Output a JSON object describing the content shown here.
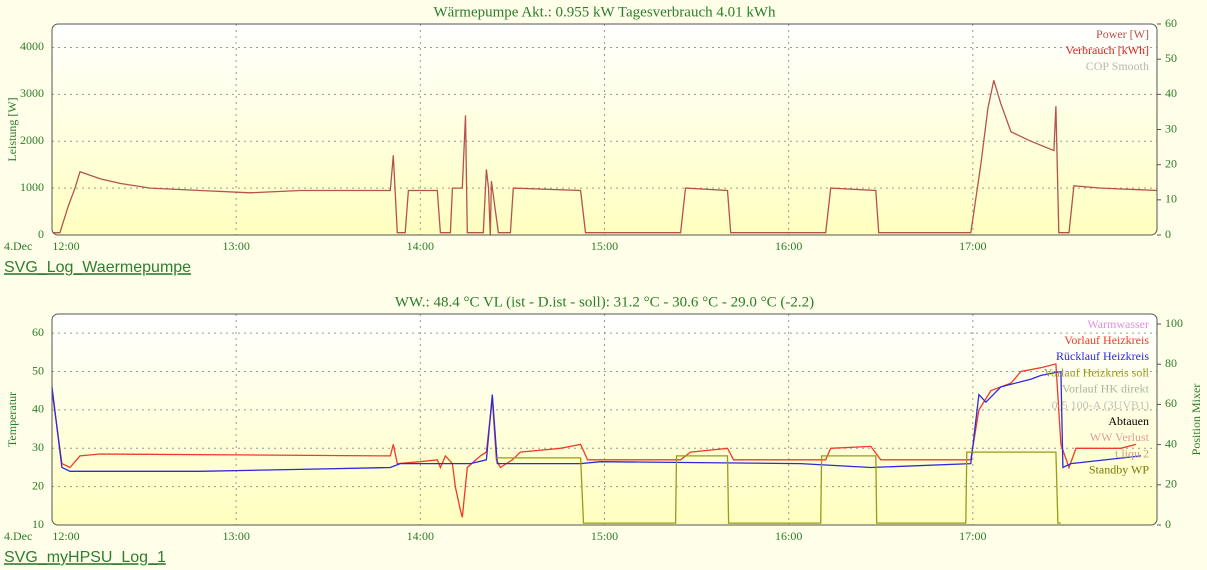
{
  "chart_data": [
    {
      "type": "line",
      "title": "Wärmepumpe Akt.: 0.955 kW Tagesverbrauch 4.01 kWh",
      "date_label": "4.Dec",
      "link": "SVG_Log_Waermepumpe",
      "y_label": "Leistung [W]",
      "xlim": [
        12,
        18
      ],
      "xticks": [
        {
          "value": 12,
          "label": "12:00"
        },
        {
          "value": 13,
          "label": "13:00"
        },
        {
          "value": 14,
          "label": "14:00"
        },
        {
          "value": 15,
          "label": "15:00"
        },
        {
          "value": 16,
          "label": "16:00"
        },
        {
          "value": 17,
          "label": "17:00"
        }
      ],
      "ylim": [
        0,
        4500
      ],
      "yticks": [
        0,
        1000,
        2000,
        3000,
        4000
      ],
      "y2lim": [
        0,
        60
      ],
      "y2ticks": [
        0,
        10,
        20,
        30,
        40,
        50,
        60
      ],
      "grid": true,
      "series": [
        {
          "name": "Power [W]",
          "color": "#b5524e",
          "x": [
            12.005,
            12.043,
            12.087,
            12.125,
            12.152,
            12.261,
            12.37,
            12.533,
            12.804,
            13.076,
            13.348,
            13.837,
            13.853,
            13.875,
            13.918,
            13.935,
            14.092,
            14.109,
            14.163,
            14.174,
            14.228,
            14.245,
            14.255,
            14.342,
            14.359,
            14.37,
            14.38,
            14.386,
            14.408,
            14.424,
            14.489,
            14.505,
            14.87,
            14.897,
            15.413,
            15.44,
            15.668,
            15.685,
            16.201,
            16.228,
            16.473,
            16.489,
            16.989,
            17.043,
            17.082,
            17.114,
            17.152,
            17.207,
            17.315,
            17.44,
            17.451,
            17.467,
            17.522,
            17.549,
            17.696,
            18
          ],
          "values": [
            50,
            50,
            600,
            1000,
            1350,
            1200,
            1100,
            1000,
            950,
            900,
            950,
            950,
            1700,
            50,
            50,
            950,
            950,
            50,
            50,
            1000,
            1000,
            2550,
            50,
            50,
            1400,
            1000,
            0,
            1150,
            500,
            50,
            50,
            1000,
            950,
            50,
            50,
            1000,
            950,
            50,
            50,
            1000,
            950,
            50,
            50,
            1500,
            2700,
            3300,
            2800,
            2200,
            2000,
            1800,
            2750,
            50,
            50,
            1050,
            1000,
            950
          ]
        },
        {
          "name": "Verbrauch [kWh]",
          "color": "#e02020",
          "axis": "y2",
          "x": [],
          "values": []
        },
        {
          "name": "COP Smooth",
          "color": "#b8b8b0",
          "axis": "y2",
          "x": [],
          "values": []
        }
      ]
    },
    {
      "type": "line",
      "title": "WW.: 48.4 °C VL (ist - D.ist - soll): 31.2 °C - 30.6 °C - 29.0 °C (-2.2)",
      "date_label": "4.Dec",
      "link": "SVG_myHPSU_Log_1",
      "y_label": "Temperatur",
      "y2_label": "Position Mixer",
      "xlim": [
        12,
        18
      ],
      "xticks": [
        {
          "value": 12,
          "label": "12:00"
        },
        {
          "value": 13,
          "label": "13:00"
        },
        {
          "value": 14,
          "label": "14:00"
        },
        {
          "value": 15,
          "label": "15:00"
        },
        {
          "value": 16,
          "label": "16:00"
        },
        {
          "value": 17,
          "label": "17:00"
        }
      ],
      "ylim": [
        10,
        65
      ],
      "yticks": [
        10,
        20,
        30,
        40,
        50,
        60
      ],
      "y2lim": [
        0,
        105
      ],
      "y2ticks": [
        0,
        20,
        40,
        60,
        80,
        100
      ],
      "grid": true,
      "series": [
        {
          "name": "Warmwasser",
          "color": "#e48ee4",
          "x": [],
          "values": []
        },
        {
          "name": "Vorlauf Heizkreis",
          "color": "#f03a2a",
          "x": [
            12.0,
            12.054,
            12.098,
            12.152,
            12.261,
            13.837,
            13.853,
            13.875,
            13.998,
            14.092,
            14.109,
            14.136,
            14.174,
            14.19,
            14.217,
            14.228,
            14.255,
            14.326,
            14.359,
            14.391,
            14.413,
            14.435,
            14.5,
            14.543,
            14.761,
            14.87,
            14.908,
            15.413,
            15.467,
            15.668,
            15.701,
            16.201,
            16.228,
            16.446,
            16.5,
            16.989,
            17.033,
            17.098,
            17.207,
            17.261,
            17.37,
            17.451,
            17.478,
            17.522,
            17.56,
            17.804,
            17.886
          ],
          "values": [
            45,
            26,
            25,
            28,
            28.5,
            28,
            31,
            26,
            26.5,
            27,
            25,
            28,
            26,
            20,
            14,
            12,
            25,
            28,
            29,
            43,
            27,
            25,
            27,
            29,
            30,
            31,
            27,
            27,
            29,
            30,
            27,
            27,
            30,
            30.5,
            27,
            27,
            40,
            45,
            47,
            50,
            51,
            52,
            31,
            25,
            30,
            30,
            31
          ]
        },
        {
          "name": "Rücklauf Heizkreis",
          "color": "#2a2ae0",
          "x": [
            12.0,
            12.054,
            12.098,
            12.804,
            13.348,
            13.837,
            13.891,
            14.272,
            14.359,
            14.391,
            14.418,
            14.87,
            14.978,
            16.065,
            16.446,
            16.989,
            17.033,
            17.071,
            17.152,
            17.315,
            17.37,
            17.478,
            17.489,
            17.533,
            17.913
          ],
          "values": [
            46,
            25,
            24,
            24,
            24.5,
            25,
            26,
            26,
            27,
            44,
            26,
            26,
            26.5,
            26,
            25,
            26,
            44,
            42,
            46,
            48,
            49,
            50,
            25,
            26,
            28
          ]
        },
        {
          "name": "Vorlauf Heizkreis soll",
          "color": "#9a9a1a",
          "x": [
            14.413,
            14.87,
            14.886,
            15.386,
            15.391,
            15.668,
            15.674,
            16.174,
            16.179,
            16.473,
            16.478,
            16.962,
            16.967,
            17.451,
            17.462,
            17.478
          ],
          "values": [
            27.5,
            27.5,
            10.5,
            10.5,
            28,
            28,
            10.5,
            10.5,
            28,
            28,
            10.5,
            10.5,
            29,
            29,
            10.5,
            10.5
          ]
        },
        {
          "name": "Vorlauf HK direkt",
          "color": "#a8b8a0",
          "x": [],
          "values": []
        },
        {
          "name": "0-5 100-A (3UVB1)",
          "color": "#c0c0b8",
          "axis": "y2",
          "x": [],
          "values": []
        },
        {
          "name": "Abtauen",
          "color": "#000000",
          "x": [],
          "values": []
        },
        {
          "name": "WW Verlust",
          "color": "#d8a0a0",
          "x": [],
          "values": []
        },
        {
          "name": "t liqu 2",
          "color": "#d0a080",
          "x": [],
          "values": []
        },
        {
          "name": "Standby WP",
          "color": "#7a7a00",
          "axis": "y2",
          "x": [],
          "values": []
        }
      ]
    }
  ]
}
